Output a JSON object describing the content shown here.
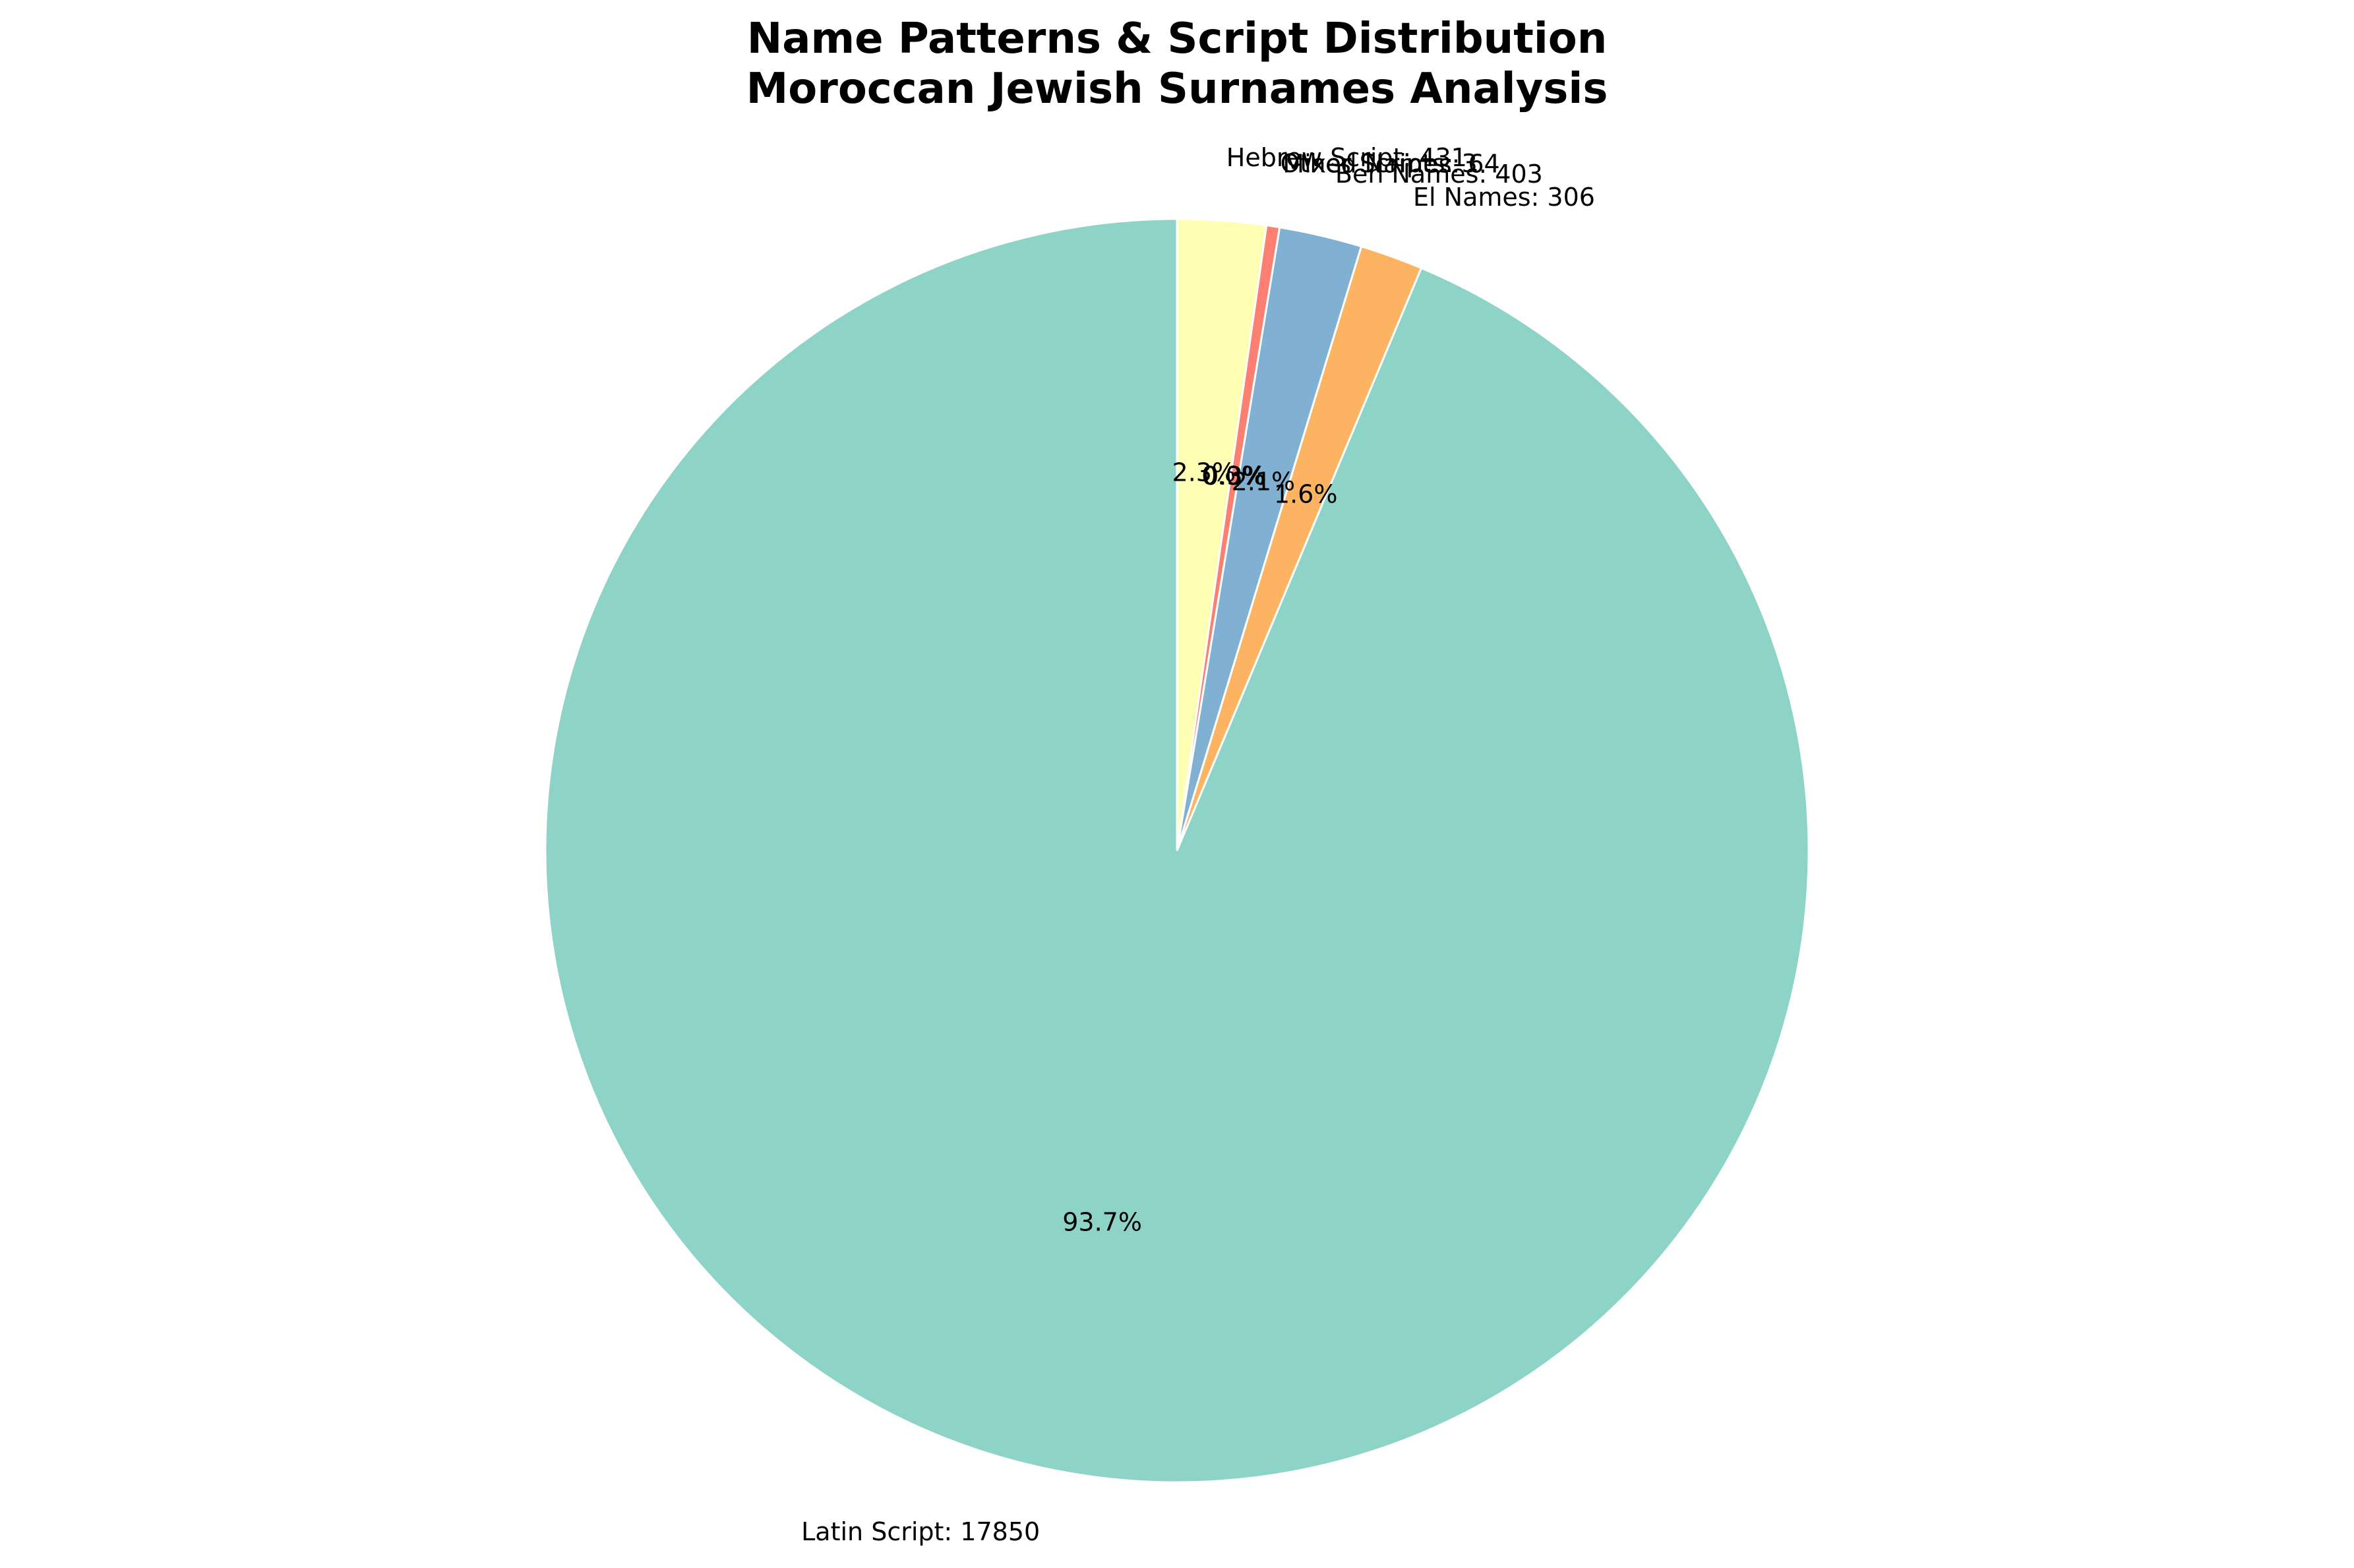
{
  "chart_data": {
    "type": "pie",
    "title": "Name Patterns & Script Distribution",
    "subtitle": "Moroccan Jewish Surnames Analysis",
    "start_angle_deg": 90,
    "direction": "counterclockwise",
    "slices": [
      {
        "label": "Latin Script",
        "value": 17850,
        "outer_label": "Latin Script: 17850",
        "pct_label": "93.7%",
        "color": "#8dd3c7"
      },
      {
        "label": "El Names",
        "value": 306,
        "outer_label": "El Names: 306",
        "pct_label": "1.6%",
        "color": "#fdb462"
      },
      {
        "label": "Ben Names",
        "value": 403,
        "outer_label": "Ben Names: 403",
        "pct_label": "2.1%",
        "color": "#80b1d3"
      },
      {
        "label": "Mixed Names",
        "value": 64,
        "outer_label": "Mixed Names: 64",
        "pct_label": "0.3%",
        "color": "#fb8072"
      },
      {
        "label": "Hebrew Script",
        "value": 431,
        "outer_label": "Hebrew Script: 431",
        "pct_label": "2.3%",
        "color": "#ffffb3"
      }
    ],
    "extra_labels": [
      {
        "text": "Other Scripts: 3",
        "pct_label": "0.0%"
      }
    ]
  }
}
